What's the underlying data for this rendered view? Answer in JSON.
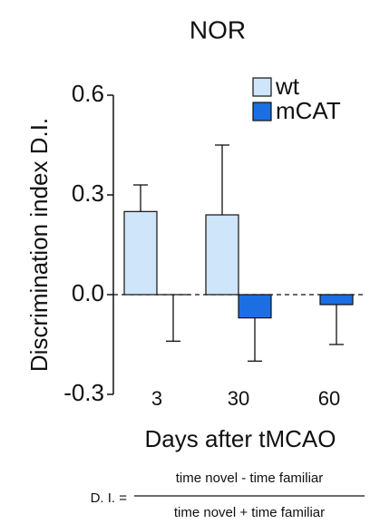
{
  "chart_data": {
    "type": "bar",
    "title": "NOR",
    "x_label": "Days after tMCAO",
    "y_label": "Discrimination index D.I.",
    "categories": [
      "3",
      "30",
      "60"
    ],
    "series": [
      {
        "name": "wt",
        "color": "#cfe5f9",
        "values": [
          0.25,
          0.24,
          null
        ],
        "errors": [
          0.08,
          0.21,
          null
        ]
      },
      {
        "name": "mCAT",
        "color": "#1b6fe3",
        "values": [
          0,
          -0.07,
          -0.03
        ],
        "errors": [
          0.14,
          0.13,
          0.12
        ]
      }
    ],
    "ylim": [
      -0.3,
      0.6
    ],
    "yticks": [
      -0.3,
      {
        "value": 0,
        "label": "0.0"
      },
      0.3,
      0.6
    ],
    "zero_line": "dashed",
    "legend": "top-right"
  },
  "formula": {
    "lhs": "D. I. =",
    "numerator": "time novel - time familiar",
    "denominator": "time novel + time familiar"
  }
}
